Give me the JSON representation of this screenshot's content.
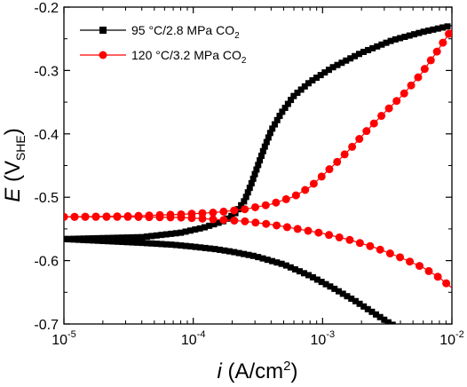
{
  "chart_data": {
    "type": "line",
    "xscale": "log",
    "xlim": [
      1e-05,
      0.01
    ],
    "ylim": [
      -0.7,
      -0.2
    ],
    "x_ticks": [
      {
        "value": 1e-05,
        "base": "10",
        "exp": "-5"
      },
      {
        "value": 0.0001,
        "base": "10",
        "exp": "-4"
      },
      {
        "value": 0.001,
        "base": "10",
        "exp": "-3"
      },
      {
        "value": 0.01,
        "base": "10",
        "exp": "-2"
      }
    ],
    "y_ticks": [
      {
        "value": -0.2,
        "label": "-0.2"
      },
      {
        "value": -0.3,
        "label": "-0.3"
      },
      {
        "value": -0.4,
        "label": "-0.4"
      },
      {
        "value": -0.5,
        "label": "-0.5"
      },
      {
        "value": -0.6,
        "label": "-0.6"
      },
      {
        "value": -0.7,
        "label": "-0.7"
      }
    ],
    "xlabel": {
      "var": "i",
      "unit_pre": " (A/cm",
      "unit_sup": "2",
      "unit_post": ")"
    },
    "ylabel": {
      "var": "E",
      "unit_pre": " (V",
      "unit_sub": "SHE",
      "unit_post": ")"
    },
    "legend_position": "top-left",
    "series": [
      {
        "name": "95 °C/2.8 MPa CO₂",
        "legend_main": "95 °C/2.8 MPa CO",
        "legend_sub": "2",
        "color": "#000000",
        "marker": "square",
        "branches": [
          {
            "label": "cathodic",
            "points": [
              [
                1e-05,
                -0.566
              ],
              [
                2e-05,
                -0.569
              ],
              [
                4e-05,
                -0.572
              ],
              [
                7e-05,
                -0.575
              ],
              [
                0.0001,
                -0.578
              ],
              [
                0.00015,
                -0.582
              ],
              [
                0.0002,
                -0.586
              ],
              [
                0.0003,
                -0.593
              ],
              [
                0.0005,
                -0.606
              ],
              [
                0.0008,
                -0.624
              ],
              [
                0.0012,
                -0.643
              ],
              [
                0.0018,
                -0.664
              ],
              [
                0.0025,
                -0.683
              ],
              [
                0.0032,
                -0.697
              ],
              [
                0.0036,
                -0.703
              ]
            ]
          },
          {
            "label": "anodic",
            "points": [
              [
                1e-05,
                -0.566
              ],
              [
                4e-05,
                -0.563
              ],
              [
                8e-05,
                -0.556
              ],
              [
                0.00012,
                -0.548
              ],
              [
                0.00017,
                -0.538
              ],
              [
                0.00021,
                -0.526
              ],
              [
                0.00025,
                -0.505
              ],
              [
                0.00028,
                -0.48
              ],
              [
                0.00031,
                -0.455
              ],
              [
                0.00035,
                -0.425
              ],
              [
                0.0004,
                -0.395
              ],
              [
                0.00048,
                -0.367
              ],
              [
                0.0006,
                -0.34
              ],
              [
                0.0008,
                -0.318
              ],
              [
                0.0012,
                -0.295
              ],
              [
                0.002,
                -0.272
              ],
              [
                0.0035,
                -0.252
              ],
              [
                0.006,
                -0.239
              ],
              [
                0.01,
                -0.229
              ]
            ]
          }
        ]
      },
      {
        "name": "120 °C/3.2 MPa CO₂",
        "legend_main": "120 °C/3.2 MPa CO",
        "legend_sub": "2",
        "color": "#ff0000",
        "marker": "circle",
        "branches": [
          {
            "label": "cathodic",
            "points": [
              [
                1e-05,
                -0.531
              ],
              [
                3e-05,
                -0.531
              ],
              [
                8e-05,
                -0.532
              ],
              [
                0.00015,
                -0.535
              ],
              [
                0.00025,
                -0.538
              ],
              [
                0.0004,
                -0.543
              ],
              [
                0.0006,
                -0.549
              ],
              [
                0.001,
                -0.557
              ],
              [
                0.0016,
                -0.567
              ],
              [
                0.0025,
                -0.579
              ],
              [
                0.004,
                -0.595
              ],
              [
                0.006,
                -0.611
              ],
              [
                0.008,
                -0.627
              ],
              [
                0.01,
                -0.643
              ]
            ]
          },
          {
            "label": "anodic",
            "points": [
              [
                1e-05,
                -0.531
              ],
              [
                3e-05,
                -0.53
              ],
              [
                8e-05,
                -0.527
              ],
              [
                0.00015,
                -0.524
              ],
              [
                0.00025,
                -0.519
              ],
              [
                0.0004,
                -0.511
              ],
              [
                0.0006,
                -0.499
              ],
              [
                0.0008,
                -0.484
              ],
              [
                0.001,
                -0.466
              ],
              [
                0.0013,
                -0.444
              ],
              [
                0.0017,
                -0.42
              ],
              [
                0.0022,
                -0.395
              ],
              [
                0.003,
                -0.367
              ],
              [
                0.0042,
                -0.338
              ],
              [
                0.0058,
                -0.305
              ],
              [
                0.0075,
                -0.273
              ],
              [
                0.01,
                -0.235
              ]
            ]
          }
        ]
      }
    ]
  }
}
